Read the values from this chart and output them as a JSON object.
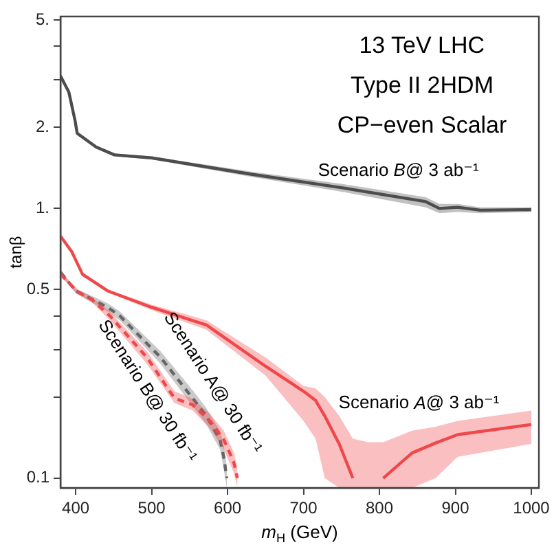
{
  "chart_data": {
    "type": "line",
    "xlabel": "m$_{H}$ (GeV)",
    "ylabel": "tanβ",
    "log": "y",
    "marker": "none",
    "annotations": [
      "13 TeV LHC",
      "Type II 2HDM",
      "CP−even Scalar"
    ],
    "xlim": [
      380,
      1010
    ],
    "xticks": [
      400,
      500,
      600,
      700,
      800,
      900,
      1000
    ],
    "ylim": [
      0.092,
      5.15
    ],
    "yticks": [
      0.1,
      {
        "value": 0.2,
        "label": null
      },
      {
        "value": 0.3,
        "label": null
      },
      {
        "value": 0.4,
        "label": null
      },
      0.5,
      {
        "value": 1,
        "label": "1."
      },
      {
        "value": 2,
        "label": "2."
      },
      {
        "value": 3,
        "label": null
      },
      {
        "value": 4,
        "label": null
      },
      {
        "value": 5,
        "label": "5."
      }
    ],
    "series": [
      {
        "name": "Scenario B@ 3 ab⁻¹",
        "color": "#4d4d4d",
        "line_style": "solid",
        "x": [
          380,
          391,
          399,
          402,
          427,
          451,
          500,
          631,
          753,
          861,
          879,
          903,
          933,
          1000
        ],
        "values": [
          3.1,
          2.7,
          2.13,
          1.9,
          1.69,
          1.58,
          1.54,
          1.34,
          1.19,
          1.06,
          1.0,
          1.01,
          0.985,
          0.99
        ],
        "lower": [
          3.05,
          2.65,
          2.09,
          1.87,
          1.67,
          1.56,
          1.52,
          1.31,
          1.15,
          1.01,
          0.96,
          0.97,
          0.96,
          0.97
        ],
        "upper": [
          3.15,
          2.75,
          2.17,
          1.93,
          1.71,
          1.6,
          1.56,
          1.37,
          1.23,
          1.1,
          1.04,
          1.04,
          1.01,
          1.01
        ]
      },
      {
        "name": "Scenario A@ 3 ab⁻¹",
        "color": "#f0484b",
        "line_style": "solid",
        "x": [
          380,
          395,
          409,
          442,
          500,
          572,
          650,
          700,
          716,
          728,
          747,
          765,
          785,
          805,
          843,
          874,
          903,
          1000
        ],
        "values": [
          0.79,
          0.69,
          0.57,
          0.495,
          0.43,
          0.37,
          0.26,
          0.21,
          0.194,
          0.17,
          0.134,
          0.1,
          null,
          0.1,
          0.124,
          0.135,
          0.145,
          0.158
        ],
        "lower": [
          0.78,
          0.68,
          0.56,
          0.49,
          0.42,
          0.355,
          0.24,
          0.163,
          0.14,
          0.1,
          0.092,
          0.092,
          0.092,
          0.092,
          0.092,
          0.1,
          0.12,
          0.134
        ],
        "upper": [
          0.8,
          0.7,
          0.58,
          0.5,
          0.44,
          0.385,
          0.28,
          0.22,
          0.215,
          0.2,
          0.17,
          0.14,
          0.136,
          0.136,
          0.15,
          0.155,
          0.163,
          0.178
        ]
      },
      {
        "name": "Scenario B@ 30 fb⁻¹",
        "color": "#f0484b",
        "line_style": "dashed",
        "x": [
          380,
          403,
          421,
          445,
          494,
          530,
          554,
          577,
          595,
          608,
          613
        ],
        "values": [
          0.57,
          0.49,
          0.46,
          0.4,
          0.28,
          0.198,
          0.187,
          0.163,
          0.139,
          0.115,
          0.1
        ],
        "lower": [
          0.56,
          0.48,
          0.45,
          0.385,
          0.265,
          0.19,
          0.178,
          0.153,
          0.128,
          0.105,
          0.092
        ],
        "upper": [
          0.58,
          0.5,
          0.47,
          0.415,
          0.295,
          0.21,
          0.197,
          0.173,
          0.15,
          0.125,
          0.11
        ]
      },
      {
        "name": "Scenario A@ 30 fb⁻¹",
        "color": "#666666",
        "line_style": "dashed",
        "x": [
          380,
          400,
          442,
          458,
          512,
          554,
          572,
          590,
          595,
          599
        ],
        "values": [
          0.58,
          0.495,
          0.43,
          0.4,
          0.28,
          0.198,
          0.17,
          0.139,
          0.12,
          0.1
        ],
        "lower": [
          0.57,
          0.485,
          0.415,
          0.385,
          0.265,
          0.185,
          0.158,
          0.128,
          0.108,
          0.092
        ],
        "upper": [
          0.59,
          0.505,
          0.445,
          0.415,
          0.295,
          0.212,
          0.182,
          0.15,
          0.132,
          0.11
        ]
      }
    ]
  }
}
